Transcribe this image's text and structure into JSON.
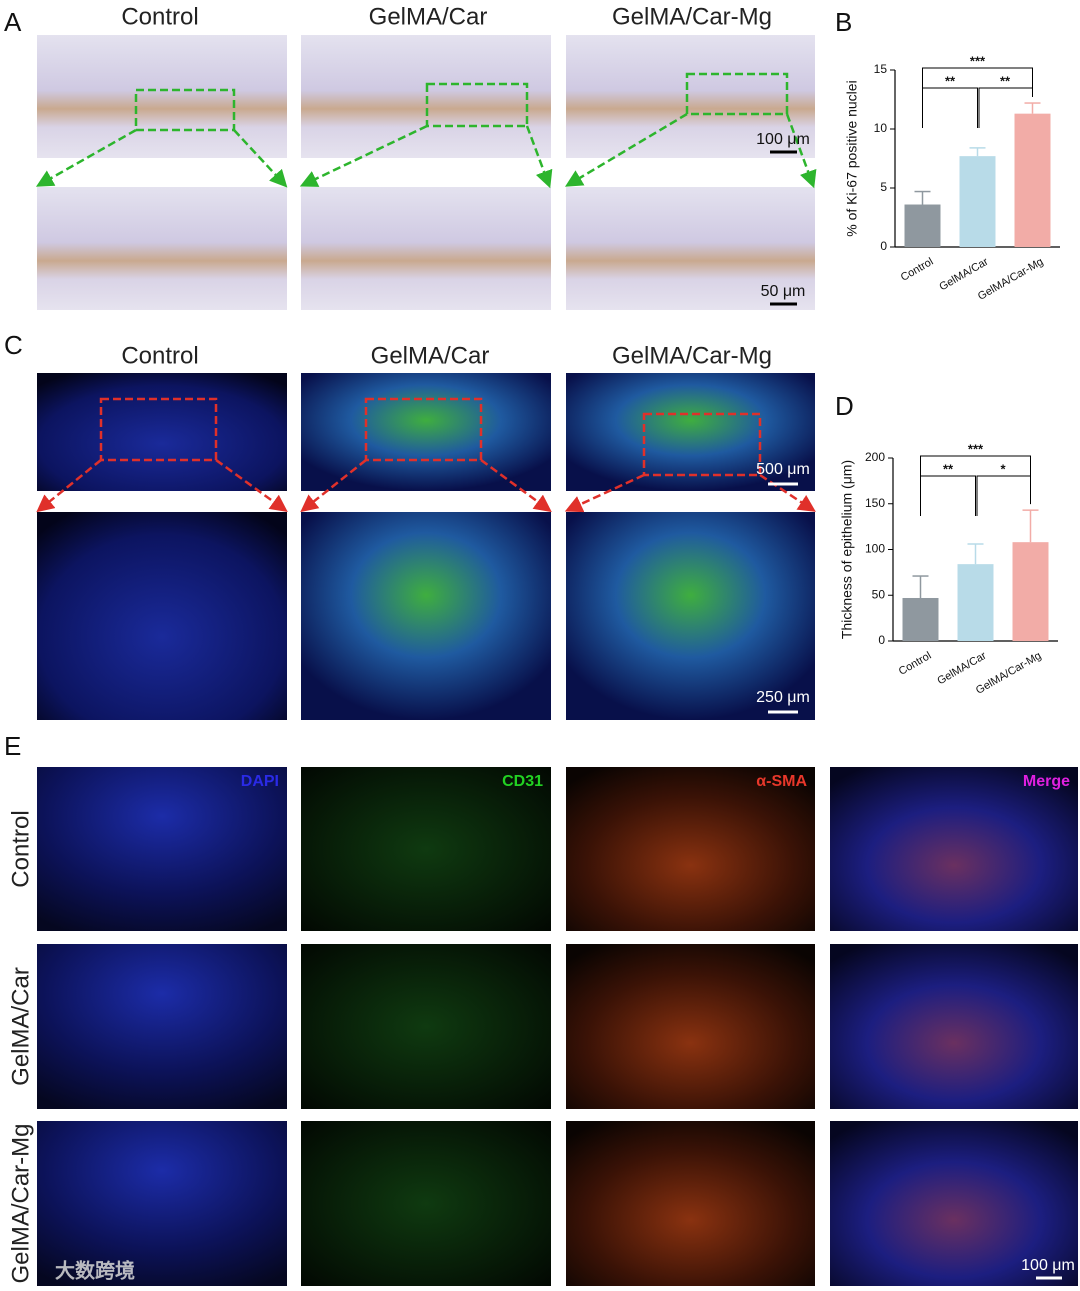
{
  "panel_labels": [
    "A",
    "B",
    "C",
    "D",
    "E"
  ],
  "panel_a": {
    "columns": [
      "Control",
      "GelMA/Car",
      "GelMA/Car-Mg"
    ],
    "scale_bars": [
      "100 μm",
      "50 μm"
    ]
  },
  "panel_c": {
    "columns": [
      "Control",
      "GelMA/Car",
      "GelMA/Car-Mg"
    ],
    "scale_bars": [
      "500 μm",
      "250 μm"
    ]
  },
  "panel_e": {
    "channels": [
      "DAPI",
      "CD31",
      "α-SMA",
      "Merge"
    ],
    "rows": [
      "Control",
      "GelMA/Car",
      "GelMA/Car-Mg"
    ],
    "scale_bar": "100 μm"
  },
  "watermark": "大数跨境",
  "chart_data": [
    {
      "type": "bar",
      "y_label": "% of Ki-67 positive nuclei",
      "categories": [
        "Control",
        "GelMA/Car",
        "GelMA/Car-Mg"
      ],
      "values": [
        3.6,
        7.7,
        11.3
      ],
      "errors": [
        1.1,
        0.7,
        0.9
      ],
      "colors": [
        "#8f989f",
        "#b8dbe8",
        "#f2aca7"
      ],
      "ylim": [
        0,
        15
      ],
      "yticks": [
        0,
        5,
        10,
        15
      ],
      "significance": [
        {
          "from": "Control",
          "to": "GelMA/Car",
          "label": "**"
        },
        {
          "from": "GelMA/Car",
          "to": "GelMA/Car-Mg",
          "label": "**"
        },
        {
          "from": "Control",
          "to": "GelMA/Car-Mg",
          "label": "***"
        }
      ]
    },
    {
      "type": "bar",
      "y_label": "Thickness of  epithelium (μm)",
      "categories": [
        "Control",
        "GelMA/Car",
        "GelMA/Car-Mg"
      ],
      "values": [
        47,
        84,
        108
      ],
      "errors": [
        24,
        22,
        35
      ],
      "colors": [
        "#8f989f",
        "#b8dbe8",
        "#f2aca7"
      ],
      "ylim": [
        0,
        200
      ],
      "yticks": [
        0,
        50,
        100,
        150,
        200
      ],
      "significance": [
        {
          "from": "Control",
          "to": "GelMA/Car",
          "label": "**"
        },
        {
          "from": "GelMA/Car",
          "to": "GelMA/Car-Mg",
          "label": "*"
        },
        {
          "from": "Control",
          "to": "GelMA/Car-Mg",
          "label": "***"
        }
      ]
    }
  ]
}
